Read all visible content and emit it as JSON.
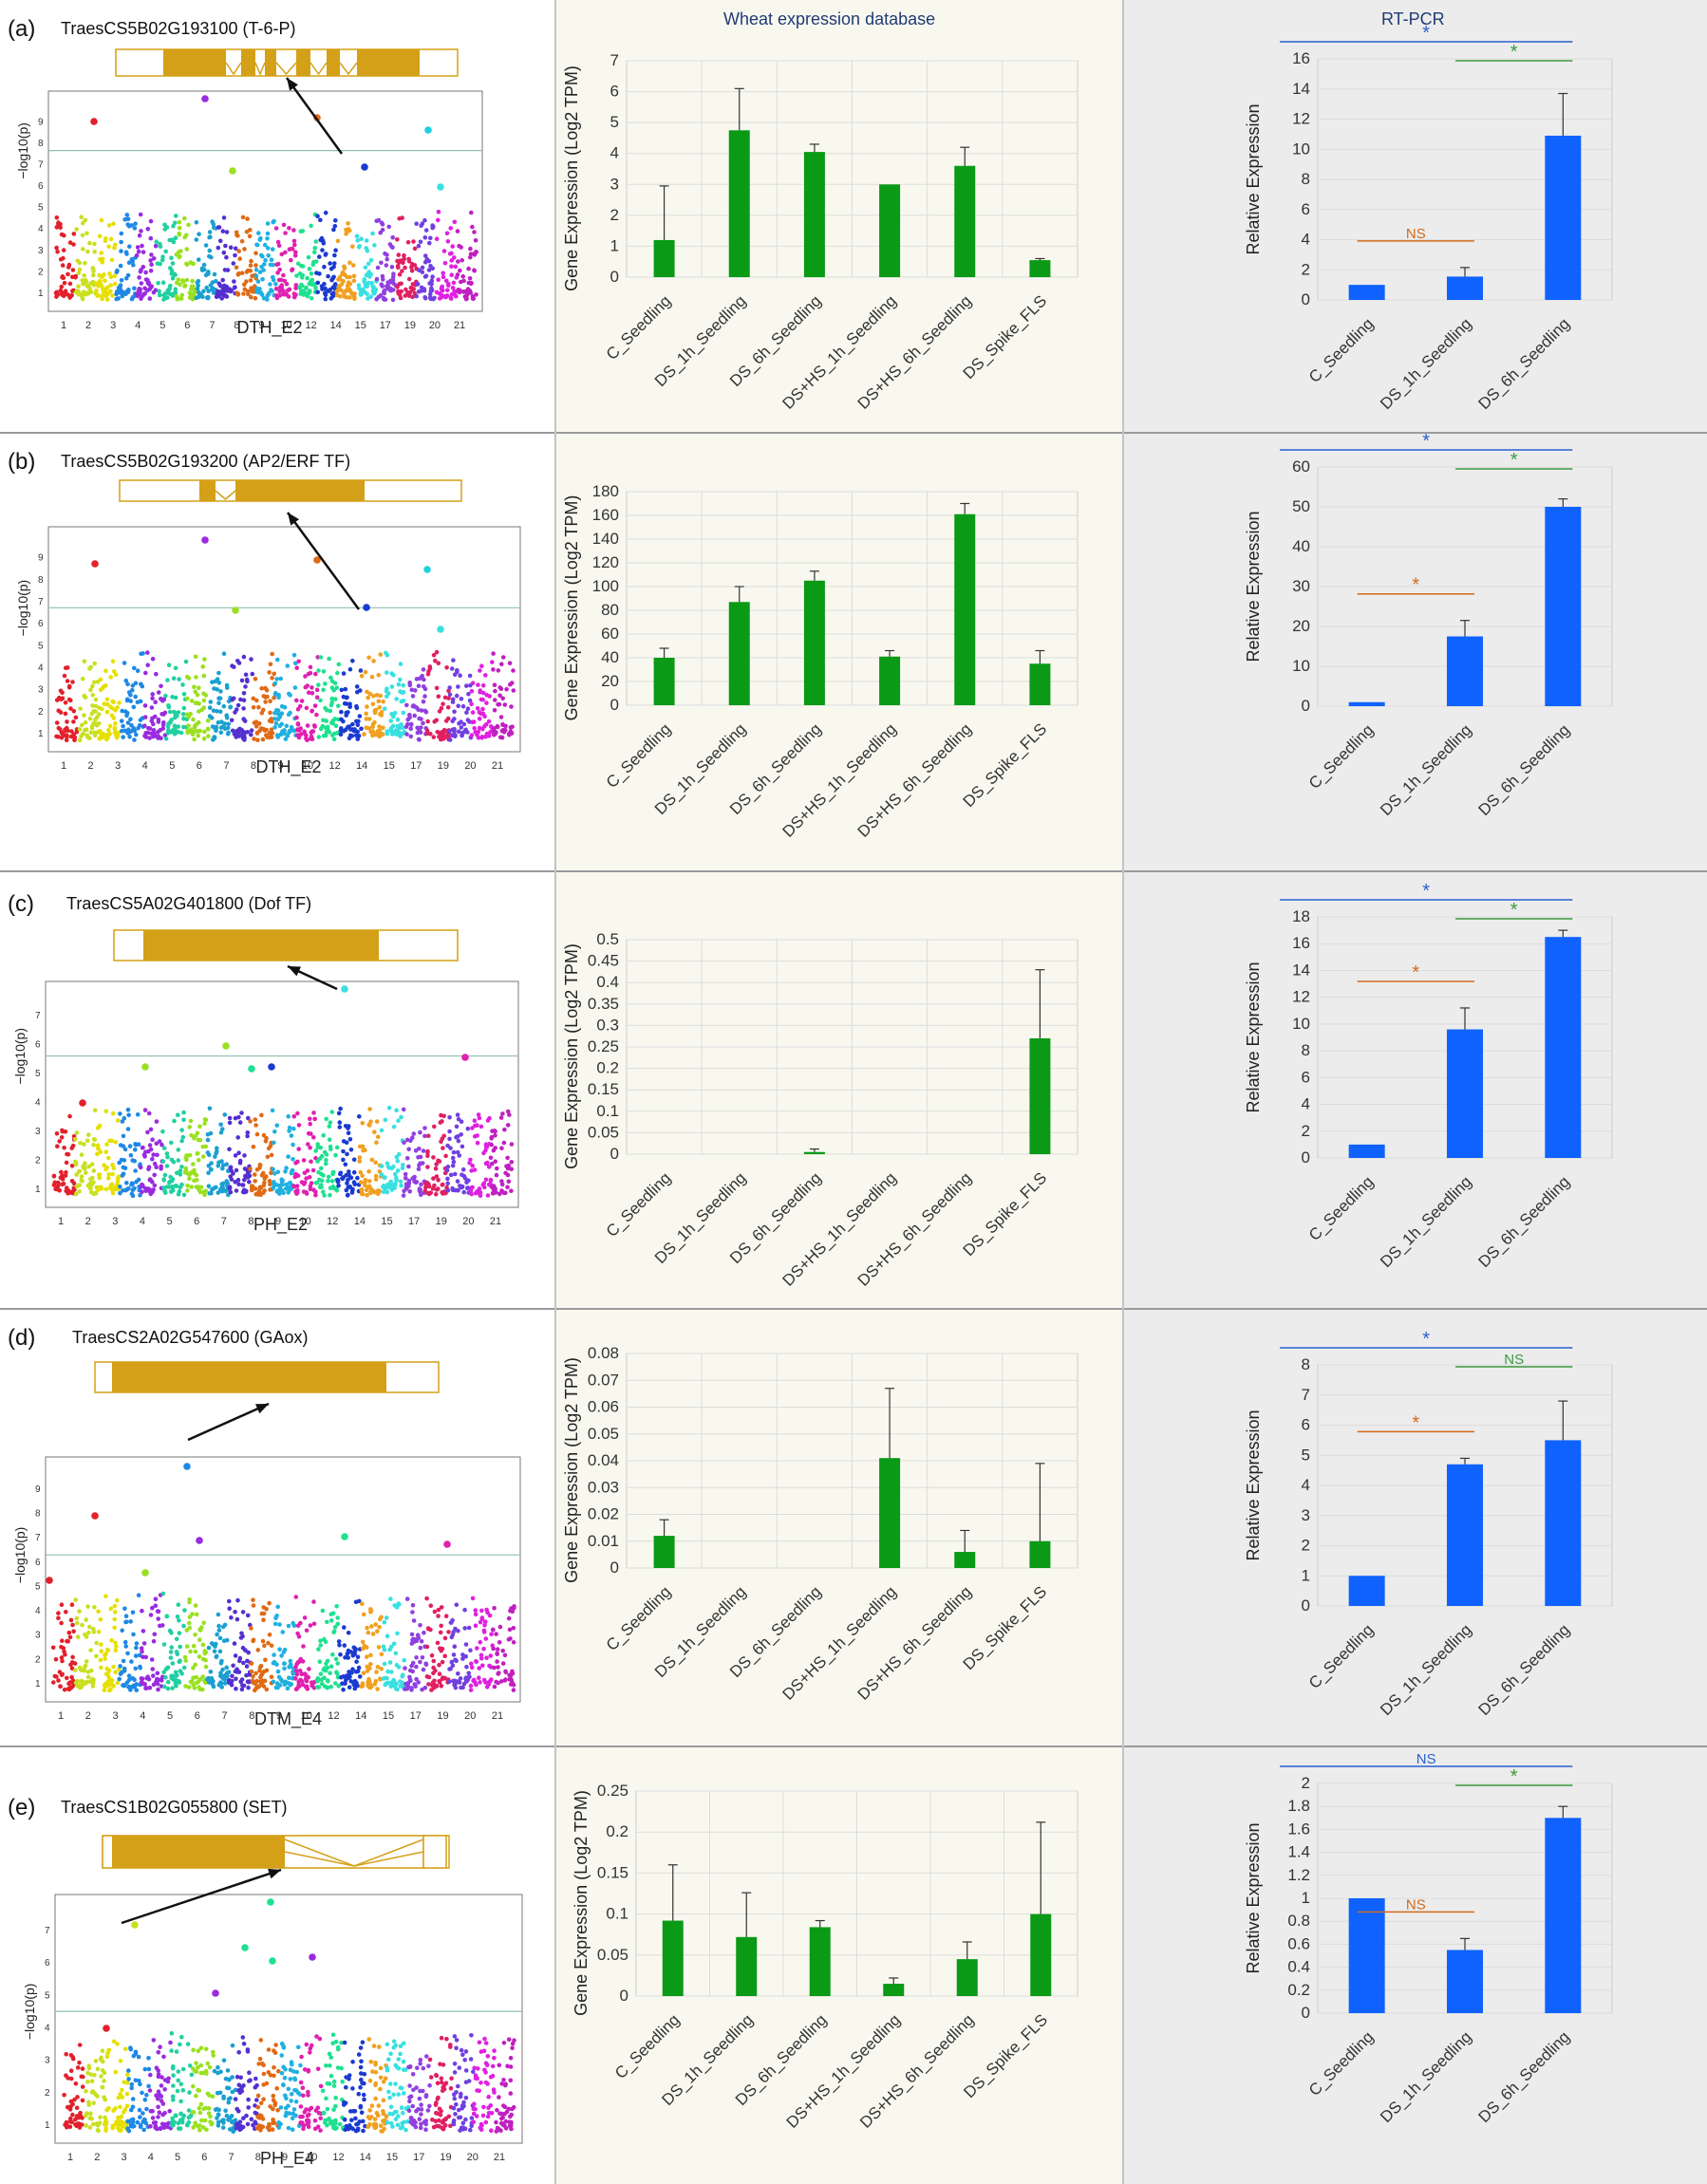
{
  "headers": {
    "middle": "Wheat expression database",
    "right": "RT-PCR"
  },
  "colors": {
    "green_bar": "#0a9a16",
    "blue_bar": "#0f62fe",
    "sig_blue": "#2a5fd0",
    "sig_green": "#3d9a3d",
    "sig_orange": "#d26a1c"
  },
  "manhattan": {
    "y_label": "−log10(p)",
    "x_ticks": [
      "1",
      "2",
      "3",
      "4",
      "5",
      "6",
      "7",
      "8",
      "9",
      "10",
      "12",
      "14",
      "15",
      "17",
      "19",
      "20",
      "21"
    ]
  },
  "db_categories": [
    "C_Seedling",
    "DS_1h_Seedling",
    "DS_6h_Seedling",
    "DS+HS_1h_Seedling",
    "DS+HS_6h_Seedling",
    "DS_Spike_FLS"
  ],
  "rt_categories": [
    "C_Seedling",
    "DS_1h_Seedling",
    "DS_6h_Seedling"
  ],
  "rt_ylabel": "Relative Expression",
  "panels": [
    {
      "label": "(a)",
      "gene": "TraesCS5B02G193100 (T-6-P)",
      "trait": "DTH_E2",
      "chart_data": [
        {
          "type": "bar",
          "chart": "db",
          "ylabel": "Gene Expression (Log2 TPM)",
          "ylim": [
            0,
            7
          ],
          "ticks": [
            "0",
            "1",
            "2",
            "3",
            "4",
            "5",
            "6",
            "7"
          ],
          "values": [
            1.2,
            4.75,
            4.05,
            3.0,
            3.6,
            0.55
          ],
          "errors": [
            1.75,
            1.35,
            0.25,
            0,
            0.6,
            0.05
          ]
        },
        {
          "type": "bar",
          "chart": "rt",
          "ylim": [
            0,
            16
          ],
          "ticks": [
            "0",
            "2",
            "4",
            "6",
            "8",
            "10",
            "12",
            "14",
            "16"
          ],
          "values": [
            1.0,
            1.55,
            10.9
          ],
          "errors": [
            0,
            0.6,
            2.8
          ],
          "sig": [
            {
              "text": "*",
              "color": "blue",
              "from": 0,
              "to": 2
            },
            {
              "text": "*",
              "color": "green",
              "from": 1,
              "to": 2
            },
            {
              "text": "NS",
              "color": "orange",
              "from": 0,
              "to": 1
            }
          ]
        }
      ]
    },
    {
      "label": "(b)",
      "gene": "TraesCS5B02G193200 (AP2/ERF TF)",
      "trait": "DTH_E2",
      "chart_data": [
        {
          "type": "bar",
          "chart": "db",
          "ylabel": "Gene Expression (Log2 TPM)",
          "ylim": [
            0,
            180
          ],
          "ticks": [
            "0",
            "20",
            "40",
            "60",
            "80",
            "100",
            "120",
            "140",
            "160",
            "180"
          ],
          "values": [
            40,
            87,
            105,
            41,
            161,
            35
          ],
          "errors": [
            8,
            13,
            8,
            5,
            9,
            11
          ]
        },
        {
          "type": "bar",
          "chart": "rt",
          "ylim": [
            0,
            60
          ],
          "ticks": [
            "0",
            "10",
            "20",
            "30",
            "40",
            "50",
            "60"
          ],
          "values": [
            1.0,
            17.5,
            50.0
          ],
          "errors": [
            0,
            4,
            2
          ],
          "sig": [
            {
              "text": "*",
              "color": "blue",
              "from": 0,
              "to": 2
            },
            {
              "text": "*",
              "color": "green",
              "from": 1,
              "to": 2
            },
            {
              "text": "*",
              "color": "orange",
              "from": 0,
              "to": 1
            }
          ]
        }
      ]
    },
    {
      "label": "(c)",
      "gene": "TraesCS5A02G401800 (Dof TF)",
      "trait": "PH_E2",
      "chart_data": [
        {
          "type": "bar",
          "chart": "db",
          "ylabel": "Gene Expression (Log2 TPM)",
          "ylim": [
            0,
            0.5
          ],
          "ticks": [
            "0",
            "0.05",
            "0.1",
            "0.15",
            "0.2",
            "0.25",
            "0.3",
            "0.35",
            "0.4",
            "0.45",
            "0.5"
          ],
          "values": [
            0,
            0,
            0.005,
            0,
            0,
            0.27
          ],
          "errors": [
            0,
            0,
            0.007,
            0,
            0,
            0.16
          ]
        },
        {
          "type": "bar",
          "chart": "rt",
          "ylim": [
            0,
            18
          ],
          "ticks": [
            "0",
            "2",
            "4",
            "6",
            "8",
            "10",
            "12",
            "14",
            "16",
            "18"
          ],
          "values": [
            1.0,
            9.6,
            16.5
          ],
          "errors": [
            0,
            1.6,
            0.5
          ],
          "sig": [
            {
              "text": "*",
              "color": "blue",
              "from": 0,
              "to": 2
            },
            {
              "text": "*",
              "color": "green",
              "from": 1,
              "to": 2
            },
            {
              "text": "*",
              "color": "orange",
              "from": 0,
              "to": 1
            }
          ]
        }
      ]
    },
    {
      "label": "(d)",
      "gene": "TraesCS2A02G547600 (GAox)",
      "trait": "DTM_E4",
      "chart_data": [
        {
          "type": "bar",
          "chart": "db",
          "ylabel": "Gene Expression (Log2 TPM)",
          "ylim": [
            0,
            0.08
          ],
          "ticks": [
            "0",
            "0.01",
            "0.02",
            "0.03",
            "0.04",
            "0.05",
            "0.06",
            "0.07",
            "0.08"
          ],
          "values": [
            0.012,
            0,
            0,
            0.041,
            0.006,
            0.01
          ],
          "errors": [
            0.006,
            0,
            0,
            0.026,
            0.008,
            0.029
          ]
        },
        {
          "type": "bar",
          "chart": "rt",
          "ylim": [
            0,
            8
          ],
          "ticks": [
            "0",
            "1",
            "2",
            "3",
            "4",
            "5",
            "6",
            "7",
            "8"
          ],
          "values": [
            1.0,
            4.7,
            5.5
          ],
          "errors": [
            0,
            0.2,
            1.3
          ],
          "sig": [
            {
              "text": "*",
              "color": "blue",
              "from": 0,
              "to": 2
            },
            {
              "text": "NS",
              "color": "green",
              "from": 1,
              "to": 2
            },
            {
              "text": "*",
              "color": "orange",
              "from": 0,
              "to": 1
            }
          ]
        }
      ]
    },
    {
      "label": "(e)",
      "gene": "TraesCS1B02G055800 (SET)",
      "trait": "PH_E4",
      "chart_data": [
        {
          "type": "bar",
          "chart": "db",
          "ylabel": "Gene Expression (Log2 TPM)",
          "ylim": [
            0,
            0.25
          ],
          "ticks": [
            "0",
            "0.05",
            "0.1",
            "0.15",
            "0.2",
            "0.25"
          ],
          "values": [
            0.092,
            0.072,
            0.084,
            0.015,
            0.045,
            0.1
          ],
          "errors": [
            0.068,
            0.054,
            0.008,
            0.007,
            0.021,
            0.112
          ]
        },
        {
          "type": "bar",
          "chart": "rt",
          "ylim": [
            0,
            2
          ],
          "ticks": [
            "0",
            "0.2",
            "0.4",
            "0.6",
            "0.8",
            "1",
            "1.2",
            "1.4",
            "1.6",
            "1.8",
            "2"
          ],
          "values": [
            1.0,
            0.55,
            1.7
          ],
          "errors": [
            0,
            0.1,
            0.1
          ],
          "sig": [
            {
              "text": "NS",
              "color": "blue",
              "from": 0,
              "to": 2
            },
            {
              "text": "*",
              "color": "green",
              "from": 1,
              "to": 2
            },
            {
              "text": "NS",
              "color": "orange",
              "from": 0,
              "to": 1
            }
          ]
        }
      ]
    }
  ]
}
